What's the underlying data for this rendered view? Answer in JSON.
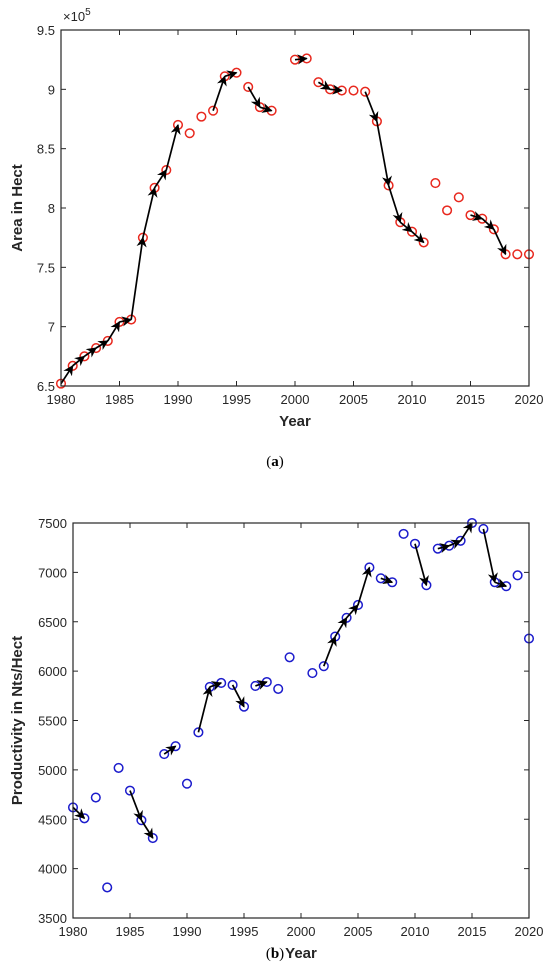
{
  "chart_data": [
    {
      "type": "scatter",
      "caption_label": "a",
      "xlabel": "Year",
      "ylabel": "Area in Hect",
      "multiplier_label": "×10",
      "multiplier_exp": "5",
      "xlim": [
        1980,
        2020
      ],
      "ylim": [
        650000,
        950000
      ],
      "xticks": [
        "1980",
        "1985",
        "1990",
        "1995",
        "2000",
        "2005",
        "2010",
        "2015",
        "2020"
      ],
      "yticks": [
        "6.5",
        "7",
        "7.5",
        "8",
        "8.5",
        "9",
        "9.5"
      ],
      "x": [
        1980,
        1981,
        1982,
        1983,
        1984,
        1985,
        1986,
        1987,
        1988,
        1989,
        1990,
        1991,
        1992,
        1993,
        1994,
        1995,
        1996,
        1997,
        1998,
        2000,
        2001,
        2002,
        2003,
        2004,
        2005,
        2006,
        2007,
        2008,
        2009,
        2010,
        2011,
        2012,
        2013,
        2014,
        2015,
        2016,
        2017,
        2018,
        2019,
        2020
      ],
      "y": [
        652000,
        667000,
        675000,
        682000,
        688000,
        704000,
        706000,
        775000,
        817000,
        832000,
        870000,
        863000,
        877000,
        882000,
        911000,
        914000,
        902000,
        885000,
        882000,
        925000,
        926000,
        906000,
        900000,
        899000,
        899000,
        898000,
        873000,
        819000,
        788000,
        780000,
        771000,
        821000,
        798000,
        809000,
        794000,
        791000,
        782000,
        761000,
        761000,
        761000
      ],
      "arrows": [
        [
          1980,
          1981
        ],
        [
          1981,
          1982
        ],
        [
          1982,
          1983
        ],
        [
          1983,
          1984
        ],
        [
          1984,
          1985
        ],
        [
          1985,
          1986
        ],
        [
          1986,
          1987
        ],
        [
          1987,
          1988
        ],
        [
          1988,
          1989
        ],
        [
          1989,
          1990
        ],
        [
          1993,
          1994
        ],
        [
          1994,
          1995
        ],
        [
          1996,
          1997
        ],
        [
          1997,
          1998
        ],
        [
          2000,
          2001
        ],
        [
          2002,
          2003
        ],
        [
          2003,
          2004
        ],
        [
          2006,
          2007
        ],
        [
          2007,
          2008
        ],
        [
          2008,
          2009
        ],
        [
          2009,
          2010
        ],
        [
          2010,
          2011
        ],
        [
          2015,
          2016
        ],
        [
          2016,
          2017
        ],
        [
          2017,
          2018
        ]
      ],
      "marker_color": "#e8281e",
      "arrow_color": "#000000",
      "grid": false
    },
    {
      "type": "scatter",
      "caption_label": "b",
      "xlabel": "Year",
      "ylabel": "Productivity in Nts/Hect",
      "xlim": [
        1980,
        2020
      ],
      "ylim": [
        3500,
        7500
      ],
      "xticks": [
        "1980",
        "1985",
        "1990",
        "1995",
        "2000",
        "2005",
        "2010",
        "2015",
        "2020"
      ],
      "yticks": [
        "3500",
        "4000",
        "4500",
        "5000",
        "5500",
        "6000",
        "6500",
        "7000",
        "7500"
      ],
      "x": [
        1980,
        1981,
        1982,
        1983,
        1984,
        1985,
        1986,
        1987,
        1988,
        1989,
        1990,
        1991,
        1992,
        1993,
        1994,
        1995,
        1996,
        1997,
        1998,
        1999,
        2001,
        2002,
        2003,
        2004,
        2005,
        2006,
        2007,
        2008,
        2009,
        2010,
        2011,
        2012,
        2013,
        2014,
        2015,
        2016,
        2017,
        2018,
        2019,
        2020
      ],
      "y": [
        4620,
        4510,
        4720,
        3810,
        5020,
        4790,
        4490,
        4310,
        5160,
        5240,
        4860,
        5380,
        5840,
        5880,
        5860,
        5640,
        5850,
        5890,
        5820,
        6140,
        5980,
        6050,
        6350,
        6540,
        6670,
        7050,
        6940,
        6900,
        7390,
        7290,
        6870,
        7240,
        7270,
        7320,
        7500,
        7440,
        6900,
        6860,
        6970,
        6330
      ],
      "arrows": [
        [
          1980,
          1981
        ],
        [
          1985,
          1986
        ],
        [
          1986,
          1987
        ],
        [
          1988,
          1989
        ],
        [
          1991,
          1992
        ],
        [
          1992,
          1993
        ],
        [
          1994,
          1995
        ],
        [
          1996,
          1997
        ],
        [
          2002,
          2003
        ],
        [
          2003,
          2004
        ],
        [
          2004,
          2005
        ],
        [
          2005,
          2006
        ],
        [
          2007,
          2008
        ],
        [
          2010,
          2011
        ],
        [
          2012,
          2013
        ],
        [
          2013,
          2014
        ],
        [
          2014,
          2015
        ],
        [
          2016,
          2017
        ],
        [
          2017,
          2018
        ]
      ],
      "marker_color": "#1c1ccc",
      "arrow_color": "#000000",
      "grid": false
    }
  ]
}
